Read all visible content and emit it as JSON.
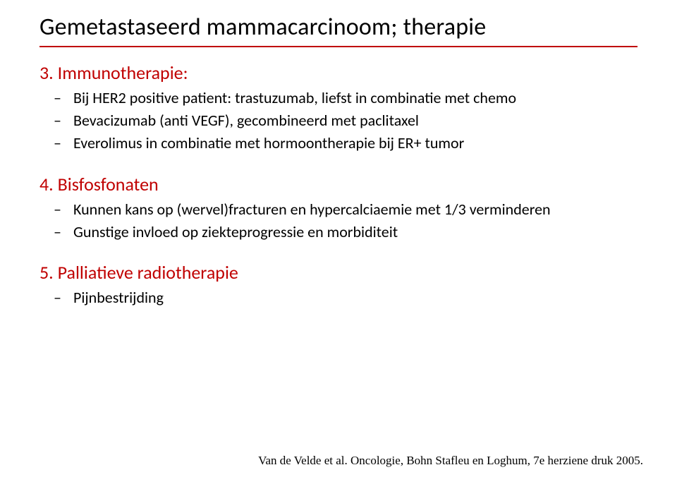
{
  "colors": {
    "heading": "#000000",
    "rule": "#c00000",
    "body": "#000000",
    "bullet_red": "#c00000",
    "background": "#ffffff"
  },
  "title": "Gemetastaseerd mammacarcinoom; therapie",
  "sections": [
    {
      "number": "3.",
      "heading": "Immunotherapie:",
      "bullets": [
        "Bij HER2 positive patient: trastuzumab, liefst in combinatie met chemo",
        "Bevacizumab (anti VEGF), gecombineerd met paclitaxel",
        "Everolimus in combinatie met hormoontherapie  bij ER+ tumor"
      ]
    },
    {
      "number": "4.",
      "heading": "Bisfosfonaten",
      "bullets": [
        "Kunnen kans op (wervel)fracturen en hypercalciaemie met 1/3 verminderen",
        "Gunstige invloed op ziekteprogressie en morbiditeit"
      ]
    },
    {
      "number": "5.",
      "heading": "Palliatieve radiotherapie",
      "bullets": [
        "Pijnbestrijding"
      ]
    }
  ],
  "footer": "Van de Velde et al. Oncologie, Bohn Stafleu en Loghum, 7e herziene druk 2005."
}
